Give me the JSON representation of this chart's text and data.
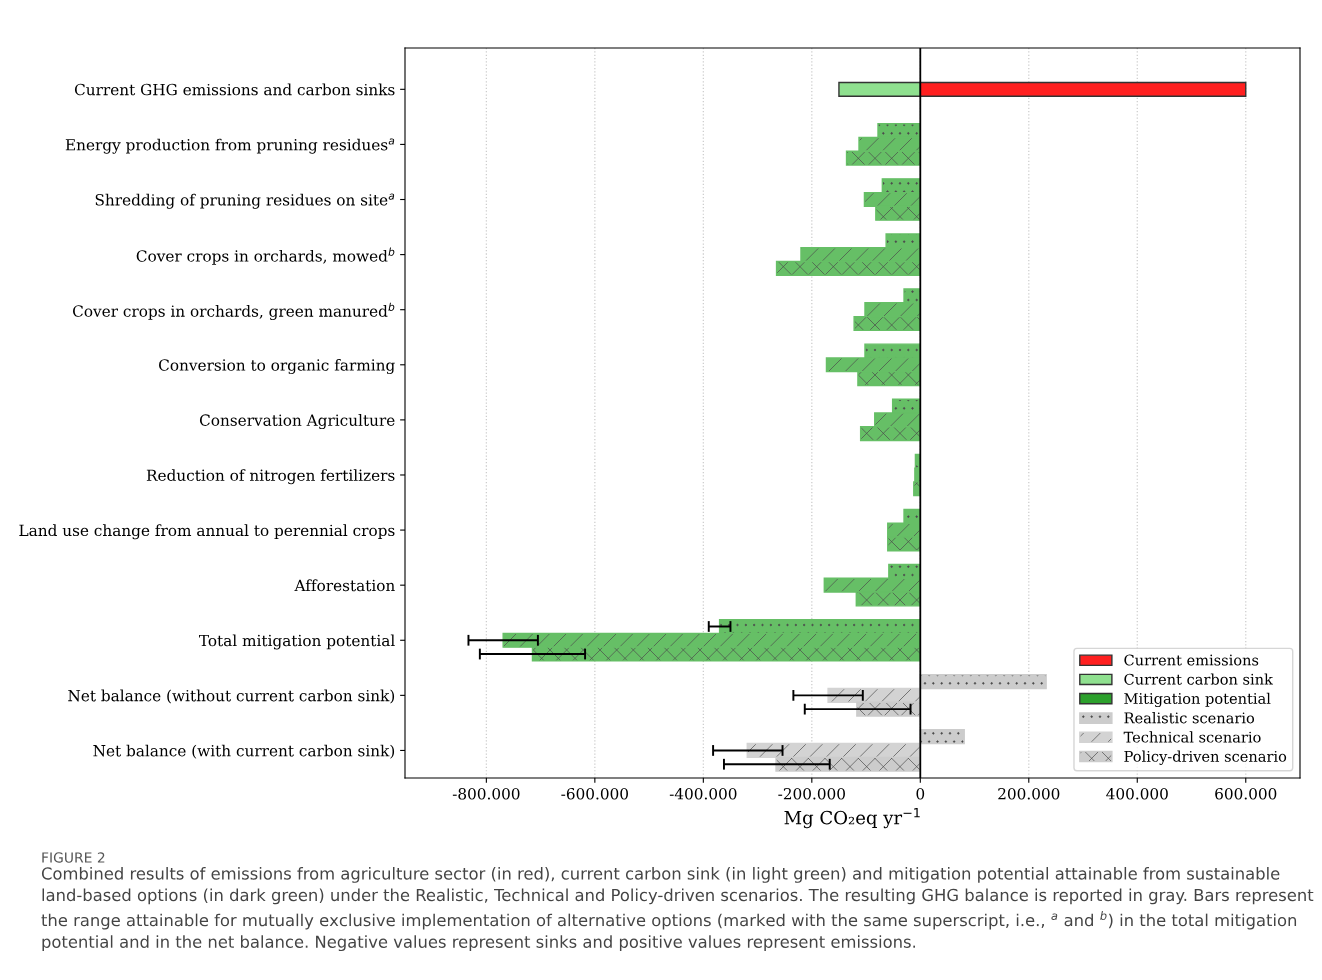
{
  "chart_data": {
    "type": "bar",
    "orientation": "horizontal",
    "categories": [
      "Current GHG emissions and carbon sinks",
      "Energy production from pruning residues$^{a}$",
      "Shredding of pruning residues on site$^{a}$",
      "Cover crops in orchards, mowed$^{b}$",
      "Cover crops in orchards, green manured$^{b}$",
      "Conversion to organic farming",
      "Conservation Agriculture",
      "Reduction of nitrogen fertilizers",
      "Land use change from annual to perennial crops",
      "Afforestation",
      "Total mitigation potential",
      "Net balance (without current carbon sink)",
      "Net balance (with current carbon sink)"
    ],
    "series": [
      {
        "name": "Current emissions",
        "color": "#ff2020",
        "values": [
          600000,
          null,
          null,
          null,
          null,
          null,
          null,
          null,
          null,
          null,
          null,
          null,
          null
        ]
      },
      {
        "name": "Current carbon sink",
        "color": "#8fe08f",
        "values": [
          -150000,
          null,
          null,
          null,
          null,
          null,
          null,
          null,
          null,
          null,
          null,
          null,
          null
        ]
      },
      {
        "name": "Mitigation potential",
        "color": "#2ca02c",
        "values": [
          null,
          null,
          null,
          null,
          null,
          null,
          null,
          null,
          null,
          null,
          null,
          null,
          null
        ]
      },
      {
        "name": "Realistic scenario",
        "color": "#cccccc",
        "colors": [
          null,
          "#66bf66",
          "#66bf66",
          "#66bf66",
          "#66bf66",
          "#66bf66",
          "#66bf66",
          "#66bf66",
          "#66bf66",
          "#66bf66",
          "#66bf66",
          "#cccccc",
          "#cccccc"
        ],
        "values": [
          null,
          -78000,
          -70000,
          -63000,
          -30000,
          -102000,
          -51000,
          -9000,
          -30000,
          -58000,
          -370000,
          232000,
          81000
        ],
        "errors": [
          null,
          null,
          null,
          null,
          null,
          null,
          null,
          null,
          null,
          null,
          [
            -390000,
            -350000
          ],
          null,
          null
        ]
      },
      {
        "name": "Technical scenario",
        "color": "#d3d3d3",
        "colors": [
          null,
          "#66bf66",
          "#66bf66",
          "#66bf66",
          "#66bf66",
          "#66bf66",
          "#66bf66",
          "#66bf66",
          "#66bf66",
          "#66bf66",
          "#66bf66",
          "#d3d3d3",
          "#d3d3d3"
        ],
        "values": [
          null,
          -113000,
          -103000,
          -220000,
          -102000,
          -173000,
          -84000,
          -10000,
          -60000,
          -177000,
          -769000,
          -170000,
          -319000
        ],
        "errors": [
          null,
          null,
          null,
          null,
          null,
          null,
          null,
          null,
          null,
          null,
          [
            -833000,
            -705000
          ],
          [
            -234000,
            -106000
          ],
          [
            -382000,
            -254000
          ]
        ]
      },
      {
        "name": "Policy-driven scenario",
        "color": "#cccccc",
        "colors": [
          null,
          "#66bf66",
          "#66bf66",
          "#66bf66",
          "#66bf66",
          "#66bf66",
          "#66bf66",
          "#66bf66",
          "#66bf66",
          "#66bf66",
          "#66bf66",
          "#cccccc",
          "#cccccc"
        ],
        "values": [
          null,
          -136000,
          -82000,
          -265000,
          -122000,
          -115000,
          -110000,
          -12000,
          -60000,
          -118000,
          -715000,
          -117000,
          -266000
        ],
        "errors": [
          null,
          null,
          null,
          null,
          null,
          null,
          null,
          null,
          null,
          null,
          [
            -812000,
            -618000
          ],
          [
            -213000,
            -18000
          ],
          [
            -362000,
            -167000
          ]
        ]
      }
    ],
    "xlabel": "Mg CO₂eq yr$^{−1}$",
    "xlim": [
      -950000,
      700000
    ],
    "xticks": [
      {
        "value": -800000,
        "label": "-800.000"
      },
      {
        "value": -600000,
        "label": "-600.000"
      },
      {
        "value": -400000,
        "label": "-400.000"
      },
      {
        "value": -200000,
        "label": "-200.000"
      },
      0,
      {
        "value": 200000,
        "label": "200.000"
      },
      {
        "value": 400000,
        "label": "400.000"
      },
      {
        "value": 600000,
        "label": "600.000"
      }
    ],
    "ref_lines": [
      {
        "axis": "x",
        "value": 0,
        "color": "#000000"
      }
    ],
    "grid": "x",
    "legend": "bottom right",
    "annotations": [
      "FIGURE 2",
      "Combined results of emissions from agriculture sector (in red), current carbon sink (in light green) and mitigation potential attainable from sustainable land-based options (in dark green) under the Realistic, Technical and Policy-driven scenarios. The resulting GHG balance is reported in gray. Bars represent the range attainable for mutually exclusive implementation of alternative options (marked with the same superscript, i.e., $^{a}$ and $^{b}$) in the total mitigation potential and in the net balance. Negative values represent sinks and positive values represent emissions."
    ]
  }
}
